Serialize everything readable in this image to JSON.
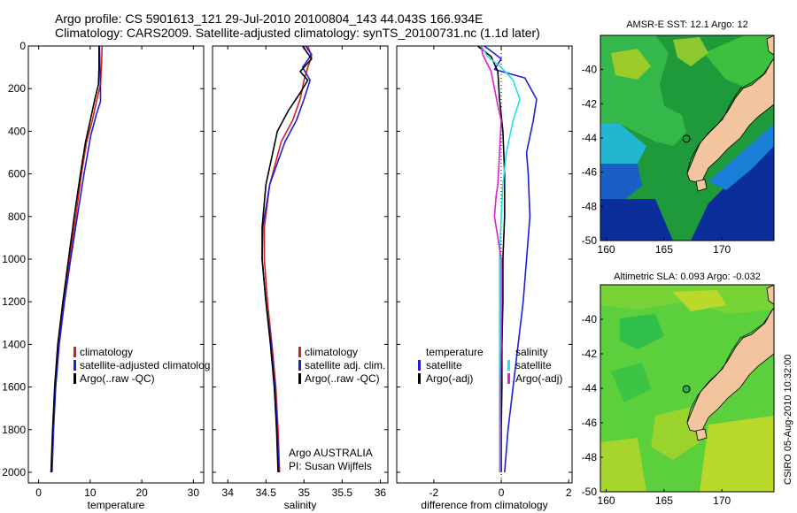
{
  "figure": {
    "title_line1": "Argo profile: CS 5901613_121 29-Jul-2010 20100804_143 44.043S 166.934E",
    "title_line2": "Climatology: CARS2009. Satellite-adjusted climatology: synTS_20100731.nc (1.1d later)",
    "footer_rotated": "CSIRO 05-Aug-2010 10:32:00"
  },
  "colors": {
    "climatology": "#d62020",
    "satellite": "#1f1fd8",
    "argo": "#000000",
    "satellite_sal": "#20e0e8",
    "argo_adj_sal": "#e020d0",
    "land": "#f2c59e"
  },
  "chart_data": [
    {
      "id": "temperature",
      "type": "line",
      "xlabel": "temperature",
      "xlim": [
        -2,
        32
      ],
      "ylim": [
        2050,
        0
      ],
      "xticks": [
        "0",
        "10",
        "20",
        "30"
      ],
      "yticks": [
        "0",
        "200",
        "400",
        "600",
        "800",
        "1000",
        "1200",
        "1400",
        "1600",
        "1800",
        "2000"
      ],
      "legend": {
        "position": "lower-right",
        "entries": [
          "climatology",
          "satellite-adjusted climatolog",
          "Argo(..raw -QC)"
        ]
      },
      "series": [
        {
          "name": "climatology",
          "color": "climatology",
          "points": [
            [
              12.3,
              0
            ],
            [
              12.2,
              80
            ],
            [
              12.0,
              180
            ],
            [
              11.3,
              250
            ],
            [
              10.4,
              350
            ],
            [
              9.3,
              450
            ],
            [
              8.3,
              600
            ],
            [
              7.2,
              800
            ],
            [
              6.0,
              1000
            ],
            [
              4.8,
              1200
            ],
            [
              3.8,
              1400
            ],
            [
              3.2,
              1600
            ],
            [
              2.8,
              1800
            ],
            [
              2.5,
              2000
            ]
          ]
        },
        {
          "name": "satellite-adjusted climatolog",
          "color": "satellite",
          "points": [
            [
              11.8,
              0
            ],
            [
              11.9,
              100
            ],
            [
              12.0,
              200
            ],
            [
              12.0,
              260
            ],
            [
              11.2,
              320
            ],
            [
              10.1,
              420
            ],
            [
              8.8,
              600
            ],
            [
              7.5,
              800
            ],
            [
              6.2,
              1000
            ],
            [
              5.0,
              1200
            ],
            [
              4.0,
              1400
            ],
            [
              3.3,
              1600
            ],
            [
              2.9,
              1800
            ],
            [
              2.6,
              2000
            ]
          ]
        },
        {
          "name": "Argo(..raw -QC)",
          "color": "argo",
          "points": [
            [
              11.7,
              0
            ],
            [
              11.7,
              100
            ],
            [
              11.6,
              180
            ],
            [
              10.9,
              250
            ],
            [
              10.0,
              350
            ],
            [
              9.1,
              450
            ],
            [
              8.1,
              600
            ],
            [
              6.9,
              800
            ],
            [
              5.8,
              1000
            ],
            [
              4.7,
              1200
            ],
            [
              3.7,
              1400
            ],
            [
              3.1,
              1600
            ],
            [
              2.7,
              1800
            ],
            [
              2.4,
              2000
            ]
          ]
        }
      ]
    },
    {
      "id": "salinity",
      "type": "line",
      "xlabel": "salinity",
      "xlim": [
        33.8,
        36.1
      ],
      "ylim": [
        2050,
        0
      ],
      "xticks": [
        "34",
        "34.5",
        "35",
        "35.5",
        "36"
      ],
      "legend": {
        "position": "lower-right",
        "entries": [
          "climatology",
          "satellite adj. clim.",
          "Argo(..raw -QC)"
        ]
      },
      "annotation_line1": "Argo AUSTRALIA",
      "annotation_line2": "PI: Susan Wijffels",
      "series": [
        {
          "name": "climatology",
          "color": "climatology",
          "points": [
            [
              35.05,
              0
            ],
            [
              35.1,
              50
            ],
            [
              35.05,
              100
            ],
            [
              35.0,
              160
            ],
            [
              34.95,
              250
            ],
            [
              34.85,
              350
            ],
            [
              34.7,
              450
            ],
            [
              34.55,
              650
            ],
            [
              34.48,
              850
            ],
            [
              34.48,
              1000
            ],
            [
              34.52,
              1200
            ],
            [
              34.58,
              1400
            ],
            [
              34.63,
              1600
            ],
            [
              34.66,
              1800
            ],
            [
              34.68,
              2000
            ]
          ]
        },
        {
          "name": "satellite adj. clim.",
          "color": "satellite",
          "points": [
            [
              35.02,
              0
            ],
            [
              35.1,
              40
            ],
            [
              34.98,
              100
            ],
            [
              35.08,
              160
            ],
            [
              35.0,
              250
            ],
            [
              34.9,
              350
            ],
            [
              34.75,
              450
            ],
            [
              34.55,
              650
            ],
            [
              34.46,
              850
            ],
            [
              34.45,
              1000
            ],
            [
              34.5,
              1200
            ],
            [
              34.57,
              1400
            ],
            [
              34.62,
              1600
            ],
            [
              34.65,
              1800
            ],
            [
              34.67,
              2000
            ]
          ]
        },
        {
          "name": "Argo(..raw -QC)",
          "color": "argo",
          "points": [
            [
              34.98,
              0
            ],
            [
              35.1,
              60
            ],
            [
              34.95,
              120
            ],
            [
              35.05,
              160
            ],
            [
              34.95,
              220
            ],
            [
              34.8,
              300
            ],
            [
              34.65,
              400
            ],
            [
              34.5,
              650
            ],
            [
              34.45,
              850
            ],
            [
              34.45,
              1000
            ],
            [
              34.5,
              1200
            ],
            [
              34.56,
              1400
            ],
            [
              34.61,
              1600
            ],
            [
              34.64,
              1800
            ],
            [
              34.66,
              2000
            ]
          ]
        }
      ]
    },
    {
      "id": "difference",
      "type": "line",
      "xlabel": "difference from climatology",
      "xlim": [
        -3.1,
        2.1
      ],
      "ylim": [
        2050,
        0
      ],
      "xticks": [
        "-2",
        "0",
        "2"
      ],
      "legend": {
        "position": "lower-right",
        "header_temperature": "temperature",
        "header_salinity": "salinity",
        "entries": [
          "satellite",
          "Argo(-adj)",
          "satellite",
          "Argo(-adj)"
        ]
      },
      "series": [
        {
          "name": "temperature satellite",
          "color": "satellite",
          "points": [
            [
              -0.5,
              0
            ],
            [
              0.0,
              60
            ],
            [
              -0.2,
              110
            ],
            [
              0.7,
              150
            ],
            [
              1.05,
              250
            ],
            [
              0.95,
              350
            ],
            [
              0.75,
              500
            ],
            [
              0.8,
              600
            ],
            [
              0.85,
              800
            ],
            [
              0.75,
              1000
            ],
            [
              0.65,
              1200
            ],
            [
              0.5,
              1400
            ],
            [
              0.35,
              1600
            ],
            [
              0.2,
              1800
            ],
            [
              0.1,
              2000
            ]
          ]
        },
        {
          "name": "temperature Argo(-adj)",
          "color": "argo",
          "points": [
            [
              -0.7,
              0
            ],
            [
              -0.3,
              50
            ],
            [
              -0.1,
              120
            ],
            [
              -0.05,
              250
            ],
            [
              0.05,
              400
            ],
            [
              0.1,
              600
            ],
            [
              0.1,
              800
            ],
            [
              0.05,
              1000
            ],
            [
              0.05,
              1200
            ],
            [
              0.02,
              1400
            ],
            [
              0.02,
              1600
            ],
            [
              0.0,
              1800
            ],
            [
              0.0,
              2000
            ]
          ]
        },
        {
          "name": "salinity satellite",
          "color": "satellite_sal",
          "points": [
            [
              -0.6,
              0
            ],
            [
              -0.4,
              50
            ],
            [
              0.0,
              100
            ],
            [
              0.35,
              160
            ],
            [
              0.55,
              250
            ],
            [
              0.35,
              350
            ],
            [
              0.15,
              500
            ],
            [
              0.05,
              650
            ],
            [
              0.0,
              800
            ],
            [
              -0.05,
              1000
            ],
            [
              -0.05,
              1200
            ],
            [
              -0.05,
              1400
            ],
            [
              -0.05,
              1600
            ],
            [
              -0.05,
              1800
            ],
            [
              -0.05,
              2000
            ]
          ]
        },
        {
          "name": "salinity Argo(-adj)",
          "color": "argo_adj_sal",
          "points": [
            [
              -0.6,
              0
            ],
            [
              -0.55,
              40
            ],
            [
              -0.3,
              120
            ],
            [
              -0.2,
              200
            ],
            [
              -0.1,
              280
            ],
            [
              0.0,
              350
            ],
            [
              -0.05,
              500
            ],
            [
              -0.1,
              650
            ],
            [
              -0.15,
              700
            ],
            [
              -0.2,
              800
            ],
            [
              -0.1,
              900
            ],
            [
              0.0,
              1000
            ],
            [
              0.0,
              1200
            ],
            [
              0.0,
              1400
            ],
            [
              -0.02,
              1600
            ],
            [
              -0.02,
              1800
            ],
            [
              -0.02,
              2000
            ]
          ]
        }
      ]
    },
    {
      "id": "sst_map",
      "type": "heatmap",
      "title": "AMSR-E SST: 12.1 Argo: 12",
      "xlim": [
        159.5,
        174.5
      ],
      "ylim": [
        -50,
        -38
      ],
      "xticks": [
        "160",
        "165",
        "170"
      ],
      "yticks": [
        "-40",
        "-42",
        "-44",
        "-46",
        "-48",
        "-50"
      ],
      "marker": {
        "lon": 166.934,
        "lat": -44.043
      }
    },
    {
      "id": "sla_map",
      "type": "heatmap",
      "title": "Altimetric SLA: 0.093 Argo: -0.032",
      "xlim": [
        159.5,
        174.5
      ],
      "ylim": [
        -50,
        -38
      ],
      "xticks": [
        "160",
        "165",
        "170"
      ],
      "yticks": [
        "-40",
        "-42",
        "-44",
        "-46",
        "-48",
        "-50"
      ],
      "marker": {
        "lon": 166.934,
        "lat": -44.043
      }
    }
  ]
}
